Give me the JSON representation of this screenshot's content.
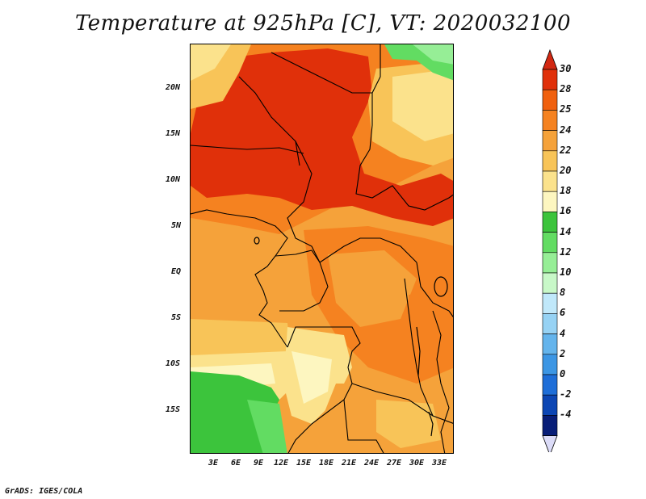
{
  "title": "Temperature at 925hPa [C], VT: 2020032100",
  "credit": "GrADS: IGES/COLA",
  "map": {
    "lat_ticks": [
      "20N",
      "15N",
      "10N",
      "5N",
      "EQ",
      "5S",
      "10S",
      "15S"
    ],
    "lon_ticks": [
      "3E",
      "6E",
      "9E",
      "12E",
      "15E",
      "18E",
      "21E",
      "24E",
      "27E",
      "30E",
      "33E"
    ],
    "lat_range": [
      -20,
      24.5
    ],
    "lon_range": [
      0,
      35
    ]
  },
  "colorbar": {
    "labels": [
      "30",
      "28",
      "25",
      "24",
      "22",
      "20",
      "18",
      "16",
      "14",
      "12",
      "10",
      "8",
      "6",
      "4",
      "2",
      "0",
      "-2",
      "-4"
    ],
    "colors": [
      "#e0300a",
      "#f0600e",
      "#f58220",
      "#f5a23a",
      "#f8c458",
      "#fbe28c",
      "#fdf6c0",
      "#3cc43c",
      "#62dc62",
      "#96ee96",
      "#c8f8c8",
      "#c0e8fa",
      "#96d2f4",
      "#64b4ec",
      "#3c96e4",
      "#1e6ed8",
      "#0c46b4",
      "#081e78"
    ],
    "top_arrow_color": "#d22812",
    "bottom_arrow_color": "#dcdcf8"
  }
}
